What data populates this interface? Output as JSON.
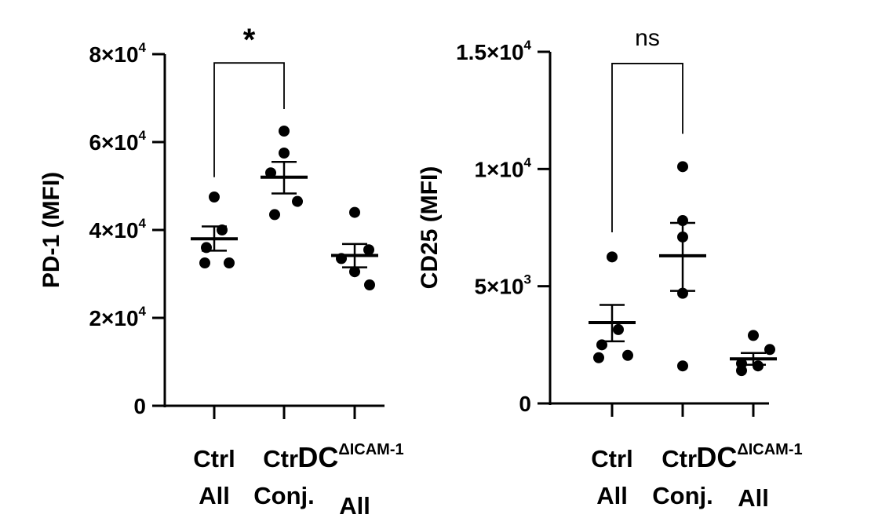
{
  "colors": {
    "ink": "#000000",
    "background": "#ffffff"
  },
  "chart_data": [
    {
      "type": "scatter",
      "ylabel": "PD-1 (MFI)",
      "ylim": [
        0,
        80000
      ],
      "yticks": [
        {
          "value": 0,
          "mantissa": "0",
          "exponent": ""
        },
        {
          "value": 20000,
          "mantissa": "2×10",
          "exponent": "4"
        },
        {
          "value": 40000,
          "mantissa": "4×10",
          "exponent": "4"
        },
        {
          "value": 60000,
          "mantissa": "6×10",
          "exponent": "4"
        },
        {
          "value": 80000,
          "mantissa": "8×10",
          "exponent": "4"
        }
      ],
      "categories": [
        {
          "line1": "Ctrl",
          "line2": "All",
          "superscript": ""
        },
        {
          "line1": "Ctrl",
          "line2": "Conj.",
          "superscript": ""
        },
        {
          "line1": "DC",
          "line2": "All",
          "superscript": "ΔICAM-1"
        }
      ],
      "groups": [
        {
          "points": [
            47500,
            40000,
            36000,
            32500,
            32500
          ],
          "mean": 38000,
          "sem_low": 35300,
          "sem_high": 40800
        },
        {
          "points": [
            62500,
            57500,
            53000,
            46500,
            43500
          ],
          "mean": 52000,
          "sem_low": 48300,
          "sem_high": 55500
        },
        {
          "points": [
            44000,
            35500,
            33500,
            30500,
            27500
          ],
          "mean": 34200,
          "sem_low": 31500,
          "sem_high": 36800
        }
      ],
      "comparison": {
        "from": 0,
        "to": 1,
        "label": "*",
        "bracket_y": 78000,
        "left_end": 52000,
        "right_end": 67500
      }
    },
    {
      "type": "scatter",
      "ylabel": "CD25 (MFI)",
      "ylim": [
        0,
        15000
      ],
      "yticks": [
        {
          "value": 0,
          "mantissa": "0",
          "exponent": ""
        },
        {
          "value": 5000,
          "mantissa": "5×10",
          "exponent": "3"
        },
        {
          "value": 10000,
          "mantissa": "1×10",
          "exponent": "4"
        },
        {
          "value": 15000,
          "mantissa": "1.5×10",
          "exponent": "4"
        }
      ],
      "categories": [
        {
          "line1": "Ctrl",
          "line2": "All",
          "superscript": ""
        },
        {
          "line1": "Ctrl",
          "line2": "Conj.",
          "superscript": ""
        },
        {
          "line1": "DC",
          "line2": "All",
          "superscript": "ΔICAM-1"
        }
      ],
      "groups": [
        {
          "points": [
            6250,
            3150,
            2500,
            2050,
            1950
          ],
          "mean": 3450,
          "sem_low": 2650,
          "sem_high": 4200
        },
        {
          "points": [
            10100,
            7800,
            7100,
            4700,
            1600
          ],
          "mean": 6300,
          "sem_low": 4800,
          "sem_high": 7700
        },
        {
          "points": [
            2900,
            2300,
            1700,
            1600,
            1400
          ],
          "mean": 1900,
          "sem_low": 1650,
          "sem_high": 2150
        }
      ],
      "comparison": {
        "from": 0,
        "to": 1,
        "label": "ns",
        "bracket_y": 14500,
        "left_end": 7300,
        "right_end": 11500
      }
    }
  ]
}
